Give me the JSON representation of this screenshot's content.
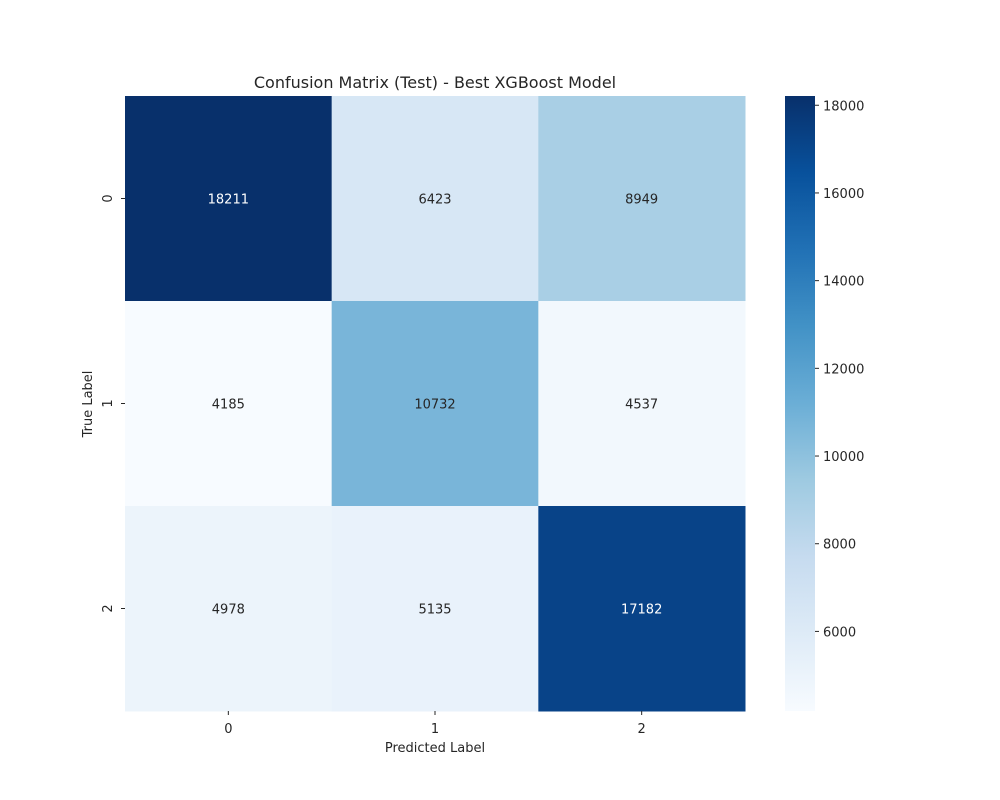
{
  "chart_data": {
    "type": "heatmap",
    "title": "Confusion Matrix (Test) - Best XGBoost Model",
    "xlabel": "Predicted Label",
    "ylabel": "True Label",
    "x_categories": [
      "0",
      "1",
      "2"
    ],
    "y_categories": [
      "0",
      "1",
      "2"
    ],
    "values": [
      [
        18211,
        6423,
        8949
      ],
      [
        4185,
        10732,
        4537
      ],
      [
        4978,
        5135,
        17182
      ]
    ],
    "colormap": "Blues",
    "colorbar": {
      "range": [
        4185,
        18211
      ],
      "ticks": [
        6000,
        8000,
        10000,
        12000,
        14000,
        16000,
        18000
      ]
    },
    "text_colors": {
      "dark": "#262626",
      "light": "#ffffff"
    }
  }
}
